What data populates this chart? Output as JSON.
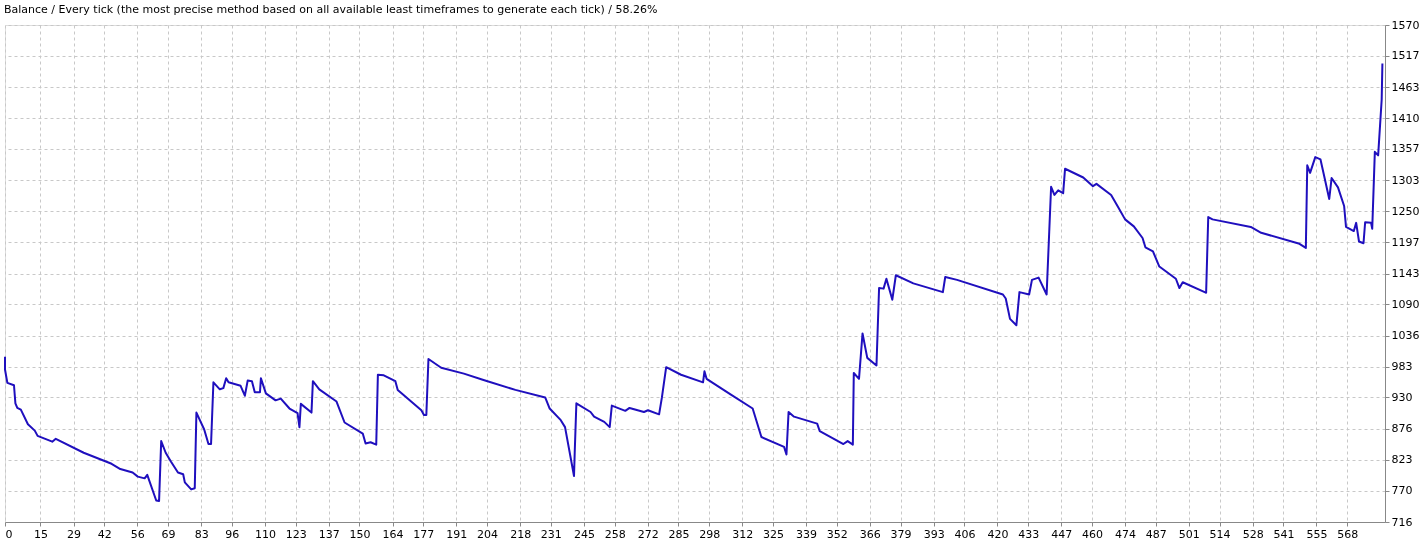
{
  "chart_data": {
    "type": "line",
    "title": "Balance / Every tick (the most precise method based on all available least timeframes to generate each tick) / 58.26%",
    "x": [
      0,
      0,
      1,
      3.8,
      4.4,
      5.2,
      6.7,
      9.7,
      12.6,
      13.8,
      20.0,
      21.5,
      33.3,
      45.1,
      48.8,
      54.0,
      56.2,
      59.1,
      60.2,
      64.0,
      65.2,
      66.1,
      68.0,
      70.2,
      73.2,
      75.4,
      76.1,
      78.8,
      80.3,
      81.0,
      84.3,
      86.1,
      87.2,
      88.2,
      90.9,
      92.4,
      93.6,
      94.6,
      99.7,
      101.5,
      102.7,
      104.5,
      105.7,
      107.9,
      108.3,
      110.4,
      114.5,
      116.7,
      120.4,
      123.8,
      124.6,
      125.2,
      129.7,
      130.3,
      133.0,
      140.3,
      143.7,
      151.4,
      152.6,
      154.7,
      157.1,
      157.8,
      160.3,
      165.2,
      166.2,
      176.2,
      177.3,
      178.3,
      179.2,
      184.6,
      194.2,
      202.5,
      216.0,
      228.6,
      230.5,
      235.2,
      237.0,
      240.8,
      241.1,
      241.8,
      247.8,
      249.3,
      253.6,
      255.9,
      256.8,
      262.5,
      264.3,
      270.4,
      272.1,
      276.8,
      278.0,
      279.8,
      286.1,
      295.4,
      296.0,
      296.9,
      307.2,
      316.4,
      320.1,
      329.7,
      330.7,
      331.6,
      333.9,
      343.7,
      344.8,
      354.8,
      356.6,
      358.8,
      359.2,
      361.4,
      362.9,
      364.9,
      368.8,
      369.9,
      371.8,
      373.0,
      375.5,
      377.0,
      384.4,
      396.9,
      397.9,
      402.9,
      422.3,
      423.5,
      425.3,
      428.0,
      429.3,
      433.4,
      434.6,
      437.4,
      440.8,
      442.7,
      444.1,
      445.7,
      447.8,
      448.6,
      456.3,
      460.4,
      461.9,
      468.1,
      471.1,
      474.0,
      477.7,
      481.4,
      482.6,
      485.8,
      488.5,
      495.5,
      497.0,
      498.4,
      507.7,
      508.3,
      509.2,
      511.0,
      527.2,
      531.6,
      547.8,
      550.5,
      551.1,
      552.3,
      554.5,
      556.7,
      557.9,
      560.4,
      561.4,
      564.1,
      566.7,
      567.5,
      570.8,
      571.8,
      573.0,
      574.9,
      575.6,
      578.1,
      578.6,
      579.7,
      581.1,
      582.6,
      582.9
    ],
    "series": [
      {
        "color": "#1f0fbe",
        "values": [
          1000,
          978,
          955,
          951,
          920,
          912,
          909,
          884,
          873,
          864,
          854,
          859,
          835,
          816,
          807,
          801,
          794,
          791,
          797,
          753,
          752,
          855,
          835,
          820,
          801,
          798,
          784,
          772,
          774,
          904,
          875,
          850,
          850,
          956,
          944,
          946,
          963,
          956,
          950,
          933,
          959,
          958,
          939,
          939,
          963,
          937,
          925,
          928,
          911,
          903,
          879,
          919,
          904,
          958,
          944,
          923,
          887,
          868,
          851,
          853,
          849,
          969,
          968,
          958,
          943,
          908,
          900,
          900,
          996,
          981,
          971,
          960,
          943,
          930,
          911,
          891,
          879,
          795,
          836,
          920,
          905,
          897,
          888,
          879,
          916,
          907,
          912,
          905,
          908,
          901,
          930,
          982,
          969,
          956,
          975,
          962,
          935,
          911,
          862,
          845,
          832,
          905,
          897,
          885,
          872,
          850,
          855,
          849,
          972,
          962,
          1040,
          998,
          985,
          1118,
          1117,
          1134,
          1098,
          1140,
          1126,
          1111,
          1137,
          1132,
          1107,
          1100,
          1065,
          1054,
          1111,
          1107,
          1132,
          1136,
          1107,
          1292,
          1278,
          1286,
          1281,
          1323,
          1308,
          1293,
          1297,
          1278,
          1257,
          1236,
          1224,
          1204,
          1188,
          1181,
          1155,
          1134,
          1118,
          1128,
          1111,
          1110,
          1240,
          1236,
          1223,
          1213,
          1194,
          1187,
          1329,
          1316,
          1343,
          1339,
          1317,
          1271,
          1307,
          1291,
          1259,
          1223,
          1216,
          1230,
          1198,
          1195,
          1231,
          1230,
          1220,
          1352,
          1346,
          1442,
          1504
        ]
      }
    ],
    "xlim": [
      0,
      584
    ],
    "ylim": [
      716,
      1570
    ],
    "xticks": [
      0,
      15,
      29,
      42,
      56,
      69,
      83,
      96,
      110,
      123,
      137,
      150,
      164,
      177,
      191,
      204,
      218,
      231,
      245,
      258,
      272,
      285,
      298,
      312,
      325,
      339,
      352,
      366,
      379,
      393,
      406,
      420,
      433,
      447,
      460,
      474,
      487,
      501,
      514,
      528,
      541,
      555,
      568
    ],
    "yticks": [
      716,
      770,
      823,
      876,
      930,
      983,
      1036,
      1090,
      1143,
      1197,
      1250,
      1303,
      1357,
      1410,
      1463,
      1517,
      1570
    ],
    "grid": true,
    "line_style": "solid"
  }
}
